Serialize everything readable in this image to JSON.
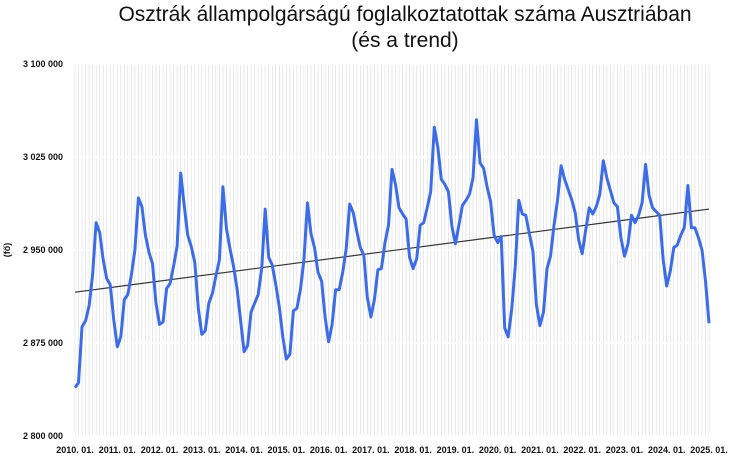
{
  "chart_data": {
    "type": "line",
    "title": "Osztrák állampolgárságú foglalkoztatottak száma Ausztriában",
    "subtitle": "(és a trend)",
    "ylabel": "(fő)",
    "xlabel": "",
    "ylim": [
      2800000,
      3100000
    ],
    "yticks": [
      2800000,
      2875000,
      2950000,
      3025000,
      3100000
    ],
    "ytick_labels": [
      "2 800 000",
      "2 875 000",
      "2 950 000",
      "3 025 000",
      "3 100 000"
    ],
    "xtick_labels": [
      "2010. 01.",
      "2011. 01.",
      "2012. 01.",
      "2013. 01.",
      "2014. 01.",
      "2015. 01.",
      "2016. 01.",
      "2017. 01.",
      "2018. 01.",
      "2019. 01.",
      "2020. 01.",
      "2021. 01.",
      "2022. 01.",
      "2023. 01.",
      "2024. 01.",
      "2025. 01."
    ],
    "x_start": "2010-01",
    "x_step": "month",
    "grid": "vertical",
    "legend": "none",
    "colors": {
      "series": "#3d6ce8",
      "trend": "#333333",
      "grid": "#d9d9d9"
    },
    "series": [
      {
        "values": [
          2839000,
          2843000,
          2888000,
          2893000,
          2905000,
          2930000,
          2972000,
          2964000,
          2942000,
          2927000,
          2922000,
          2894000,
          2872000,
          2880000,
          2910000,
          2914000,
          2930000,
          2950000,
          2992000,
          2985000,
          2962000,
          2948000,
          2939000,
          2907000,
          2890000,
          2892000,
          2919000,
          2923000,
          2937000,
          2953000,
          3012000,
          2986000,
          2962000,
          2953000,
          2940000,
          2903000,
          2882000,
          2885000,
          2907000,
          2915000,
          2929000,
          2942000,
          3001000,
          2967000,
          2951000,
          2937000,
          2919000,
          2894000,
          2868000,
          2873000,
          2900000,
          2907000,
          2914000,
          2935000,
          2983000,
          2944000,
          2938000,
          2922000,
          2904000,
          2880000,
          2862000,
          2866000,
          2901000,
          2903000,
          2918000,
          2942000,
          2988000,
          2963000,
          2952000,
          2932000,
          2925000,
          2896000,
          2876000,
          2890000,
          2918000,
          2918000,
          2932000,
          2951000,
          2987000,
          2980000,
          2965000,
          2952000,
          2946000,
          2912000,
          2896000,
          2910000,
          2934000,
          2935000,
          2956000,
          2970000,
          3015000,
          3003000,
          2984000,
          2979000,
          2975000,
          2944000,
          2935000,
          2943000,
          2970000,
          2972000,
          2984000,
          2997000,
          3049000,
          3033000,
          3007000,
          3003000,
          2997000,
          2969000,
          2955000,
          2970000,
          2986000,
          2990000,
          2995000,
          3008000,
          3055000,
          3020000,
          3016000,
          3001000,
          2989000,
          2962000,
          2956000,
          2961000,
          2887000,
          2880000,
          2903000,
          2937000,
          2990000,
          2979000,
          2978000,
          2963000,
          2949000,
          2906000,
          2889000,
          2900000,
          2935000,
          2945000,
          2970000,
          2990000,
          3018000,
          3007000,
          2999000,
          2991000,
          2980000,
          2958000,
          2947000,
          2966000,
          2984000,
          2979000,
          2985000,
          2995000,
          3022000,
          3008000,
          2998000,
          2988000,
          2985000,
          2960000,
          2945000,
          2955000,
          2978000,
          2972000,
          2978000,
          2988000,
          3019000,
          2994000,
          2984000,
          2981000,
          2978000,
          2942000,
          2921000,
          2933000,
          2952000,
          2954000,
          2962000,
          2968000,
          3002000,
          2968000,
          2968000,
          2960000,
          2950000,
          2925000,
          2891000
        ]
      }
    ],
    "trend": [
      2916000,
      2983000
    ]
  }
}
